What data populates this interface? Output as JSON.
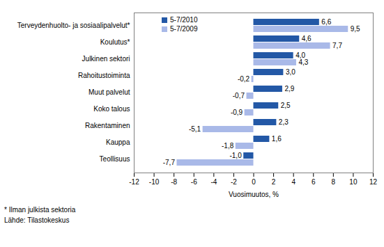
{
  "chart_data": {
    "type": "bar",
    "orientation": "horizontal",
    "categories": [
      "Terveydenhuolto- ja sosiaalipalvelut*",
      "Koulutus*",
      "Julkinen sektori",
      "Rahoitustoiminta",
      "Muut palvelut",
      "Koko talous",
      "Rakentaminen",
      "Kauppa",
      "Teollisuus"
    ],
    "series": [
      {
        "name": "5-7/2010",
        "color": "#2358a6",
        "values": [
          6.6,
          4.6,
          4.0,
          3.0,
          2.9,
          2.5,
          2.3,
          1.6,
          -1.0
        ],
        "value_labels": [
          "6,6",
          "4,6",
          "4,0",
          "3,0",
          "2,9",
          "2,5",
          "2,3",
          "1,6",
          "-1,0"
        ]
      },
      {
        "name": "5-7/2009",
        "color": "#a9b9e8",
        "values": [
          9.5,
          7.7,
          4.3,
          -0.2,
          -0.7,
          -0.9,
          -5.1,
          -1.8,
          -7.7
        ],
        "value_labels": [
          "9,5",
          "7,7",
          "4,3",
          "-0,2",
          "-0,7",
          "-0,9",
          "-5,1",
          "-1,8",
          "-7,7"
        ]
      }
    ],
    "xlabel": "Vuosimuutos, %",
    "xlim": [
      -12,
      12
    ],
    "xticks": [
      -12,
      -10,
      -8,
      -6,
      -4,
      -2,
      0,
      2,
      4,
      6,
      8,
      10,
      12
    ],
    "grid": false,
    "legend": "upper left",
    "data_labels": true,
    "annotations": [
      "* Ilman julkista sektoria",
      "Lähde: Tilastokeskus"
    ]
  }
}
